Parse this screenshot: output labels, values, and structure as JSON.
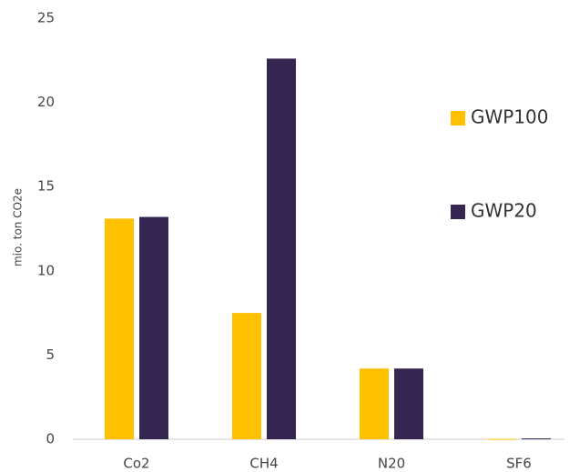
{
  "chart_data": {
    "type": "bar",
    "y_label": "mio. ton CO2e",
    "categories": [
      "Co2",
      "CH4",
      "N20",
      "SF6"
    ],
    "series": [
      {
        "name": "GWP100",
        "color": "#FFC000",
        "values": [
          13.1,
          7.5,
          4.2,
          0.02
        ]
      },
      {
        "name": "GWP20",
        "color": "#352551",
        "values": [
          13.2,
          22.6,
          4.2,
          0.05
        ]
      }
    ],
    "ylim": [
      0,
      25
    ],
    "yticks": [
      0,
      5,
      10,
      15,
      20,
      25
    ],
    "grid": false,
    "legend": "right"
  }
}
